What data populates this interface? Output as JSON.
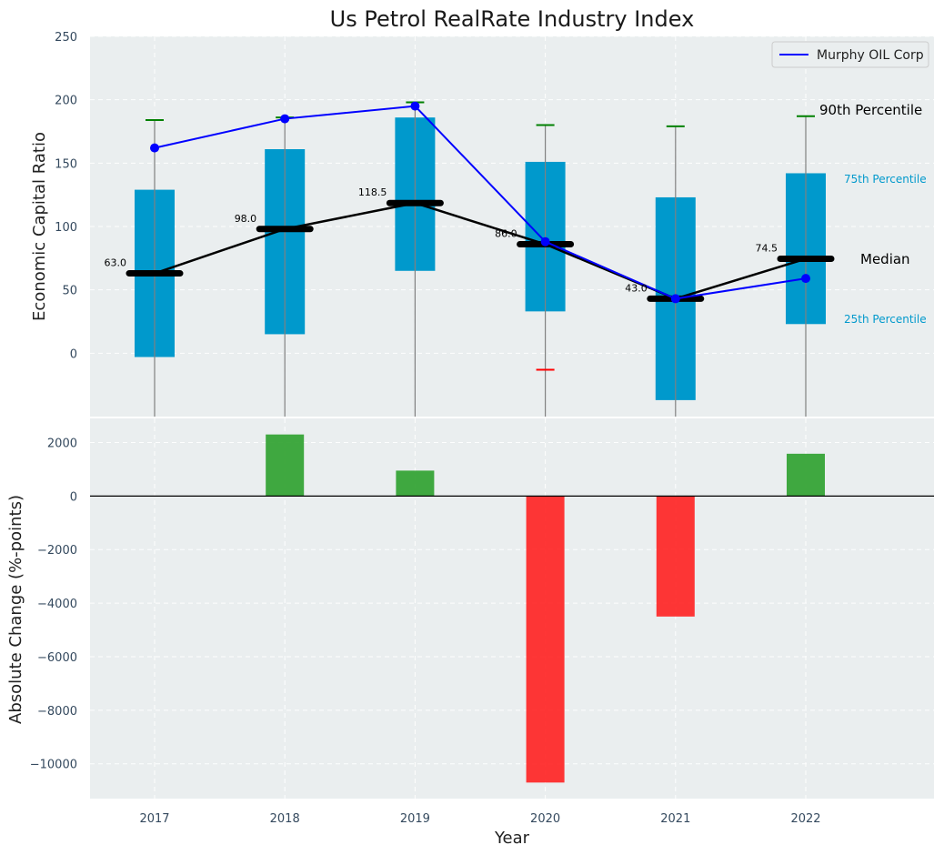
{
  "chart_data": {
    "type": "box-and-bar",
    "title": "Us Petrol RealRate Industry Index",
    "xlabel": "Year",
    "categories": [
      "2017",
      "2018",
      "2019",
      "2020",
      "2021",
      "2022"
    ],
    "top_panel": {
      "ylabel": "Economic Capital Ratio",
      "ylim": [
        -50,
        250
      ],
      "yticks": [
        "0",
        "50",
        "100",
        "150",
        "200",
        "250"
      ],
      "yticks_values": [
        0,
        50,
        100,
        150,
        200,
        250
      ],
      "p25": [
        -3,
        15,
        65,
        33,
        -37,
        23
      ],
      "p75": [
        129,
        161,
        186,
        151,
        123,
        142
      ],
      "p90": [
        184,
        186,
        198,
        180,
        179,
        187
      ],
      "p90_colors": [
        "#008000",
        "#008000",
        "#008000",
        "#008000",
        "#008000",
        "#008000"
      ],
      "p10": [
        null,
        null,
        null,
        -13,
        null,
        null
      ],
      "p10_colors": [
        "#ff0000",
        "#ff0000",
        "#ff0000",
        "#ff0000",
        "#ff0000",
        "#ff0000"
      ],
      "median": [
        63.0,
        98.0,
        118.5,
        86.0,
        43.0,
        74.5
      ],
      "median_labels": [
        "63.0",
        "98.0",
        "118.5",
        "86.0",
        "43.0",
        "74.5"
      ],
      "series": [
        {
          "name": "Murphy OIL Corp",
          "values": [
            162,
            185,
            195,
            88,
            43,
            59
          ],
          "color": "#0000ff"
        }
      ],
      "legend": "top-right",
      "annotations": {
        "p90": "90th Percentile",
        "p75": "75th Percentile",
        "median": "Median",
        "p25": "25th Percentile"
      }
    },
    "bottom_panel": {
      "ylabel": "Absolute Change (%-points)",
      "ylim": [
        -11300,
        2900
      ],
      "yticks": [
        "2000",
        "0",
        "−2000",
        "−4000",
        "−6000",
        "−8000",
        "−10000"
      ],
      "yticks_values": [
        2000,
        0,
        -2000,
        -4000,
        -6000,
        -8000,
        -10000
      ],
      "values": [
        0,
        2300,
        950,
        -10700,
        -4500,
        1580
      ],
      "positive_color": "#2ca02c",
      "negative_color": "#ff2020"
    },
    "colors": {
      "box": "#0099cc",
      "median_line": "#000000",
      "panel_bg": "#eaeeef",
      "grid": "#ffffff"
    }
  }
}
